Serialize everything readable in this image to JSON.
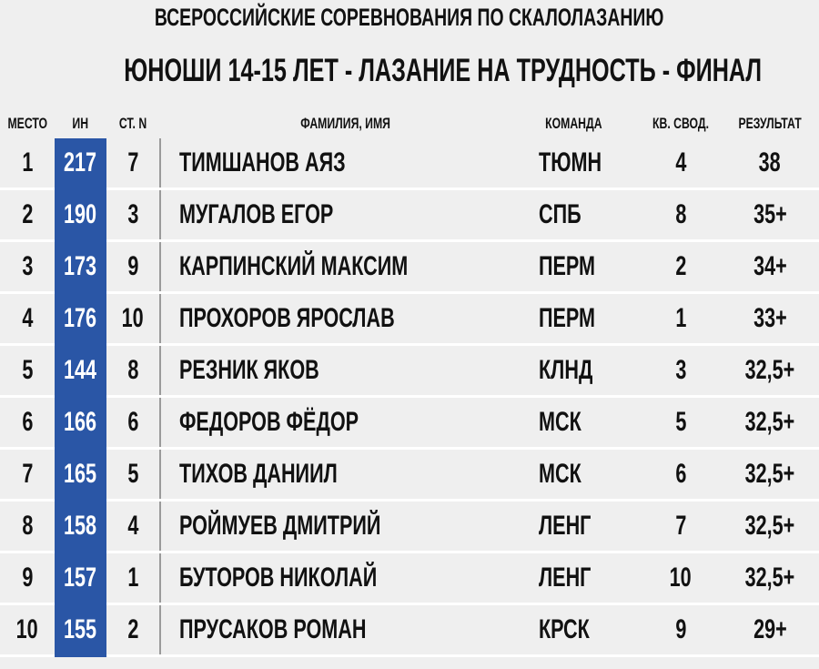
{
  "header": {
    "title": "ВСЕРОССИЙСКИЕ СОРЕВНОВАНИЯ ПО СКАЛОЛАЗАНИЮ",
    "subtitle": "ЮНОШИ 14-15 ЛЕТ - ЛАЗАНИЕ НА ТРУДНОСТЬ - ФИНАЛ"
  },
  "table": {
    "columns": [
      "МЕСТО",
      "ИН",
      "СТ. N",
      "ФАМИЛИЯ, ИМЯ",
      "КОМАНДА",
      "КВ. СВОД.",
      "РЕЗУЛЬТАТ"
    ],
    "rows": [
      [
        "1",
        "217",
        "7",
        "ТИМШАНОВ АЯЗ",
        "ТЮМН",
        "4",
        "38"
      ],
      [
        "2",
        "190",
        "3",
        "МУГАЛОВ ЕГОР",
        "СПБ",
        "8",
        "35+"
      ],
      [
        "3",
        "173",
        "9",
        "КАРПИНСКИЙ МАКСИМ",
        "ПЕРМ",
        "2",
        "34+"
      ],
      [
        "4",
        "176",
        "10",
        "ПРОХОРОВ ЯРОСЛАВ",
        "ПЕРМ",
        "1",
        "33+"
      ],
      [
        "5",
        "144",
        "8",
        "РЕЗНИК ЯКОВ",
        "КЛНД",
        "3",
        "32,5+"
      ],
      [
        "6",
        "166",
        "6",
        "ФЕДОРОВ ФЁДОР",
        "МСК",
        "5",
        "32,5+"
      ],
      [
        "7",
        "165",
        "5",
        "ТИХОВ ДАНИИЛ",
        "МСК",
        "6",
        "32,5+"
      ],
      [
        "8",
        "158",
        "4",
        "РОЙМУЕВ ДМИТРИЙ",
        "ЛЕНГ",
        "7",
        "32,5+"
      ],
      [
        "9",
        "157",
        "1",
        "БУТОРОВ НИКОЛАЙ",
        "ЛЕНГ",
        "10",
        "32,5+"
      ],
      [
        "10",
        "155",
        "2",
        "ПРУСАКОВ РОМАН",
        "КРСК",
        "9",
        "29+"
      ]
    ]
  }
}
